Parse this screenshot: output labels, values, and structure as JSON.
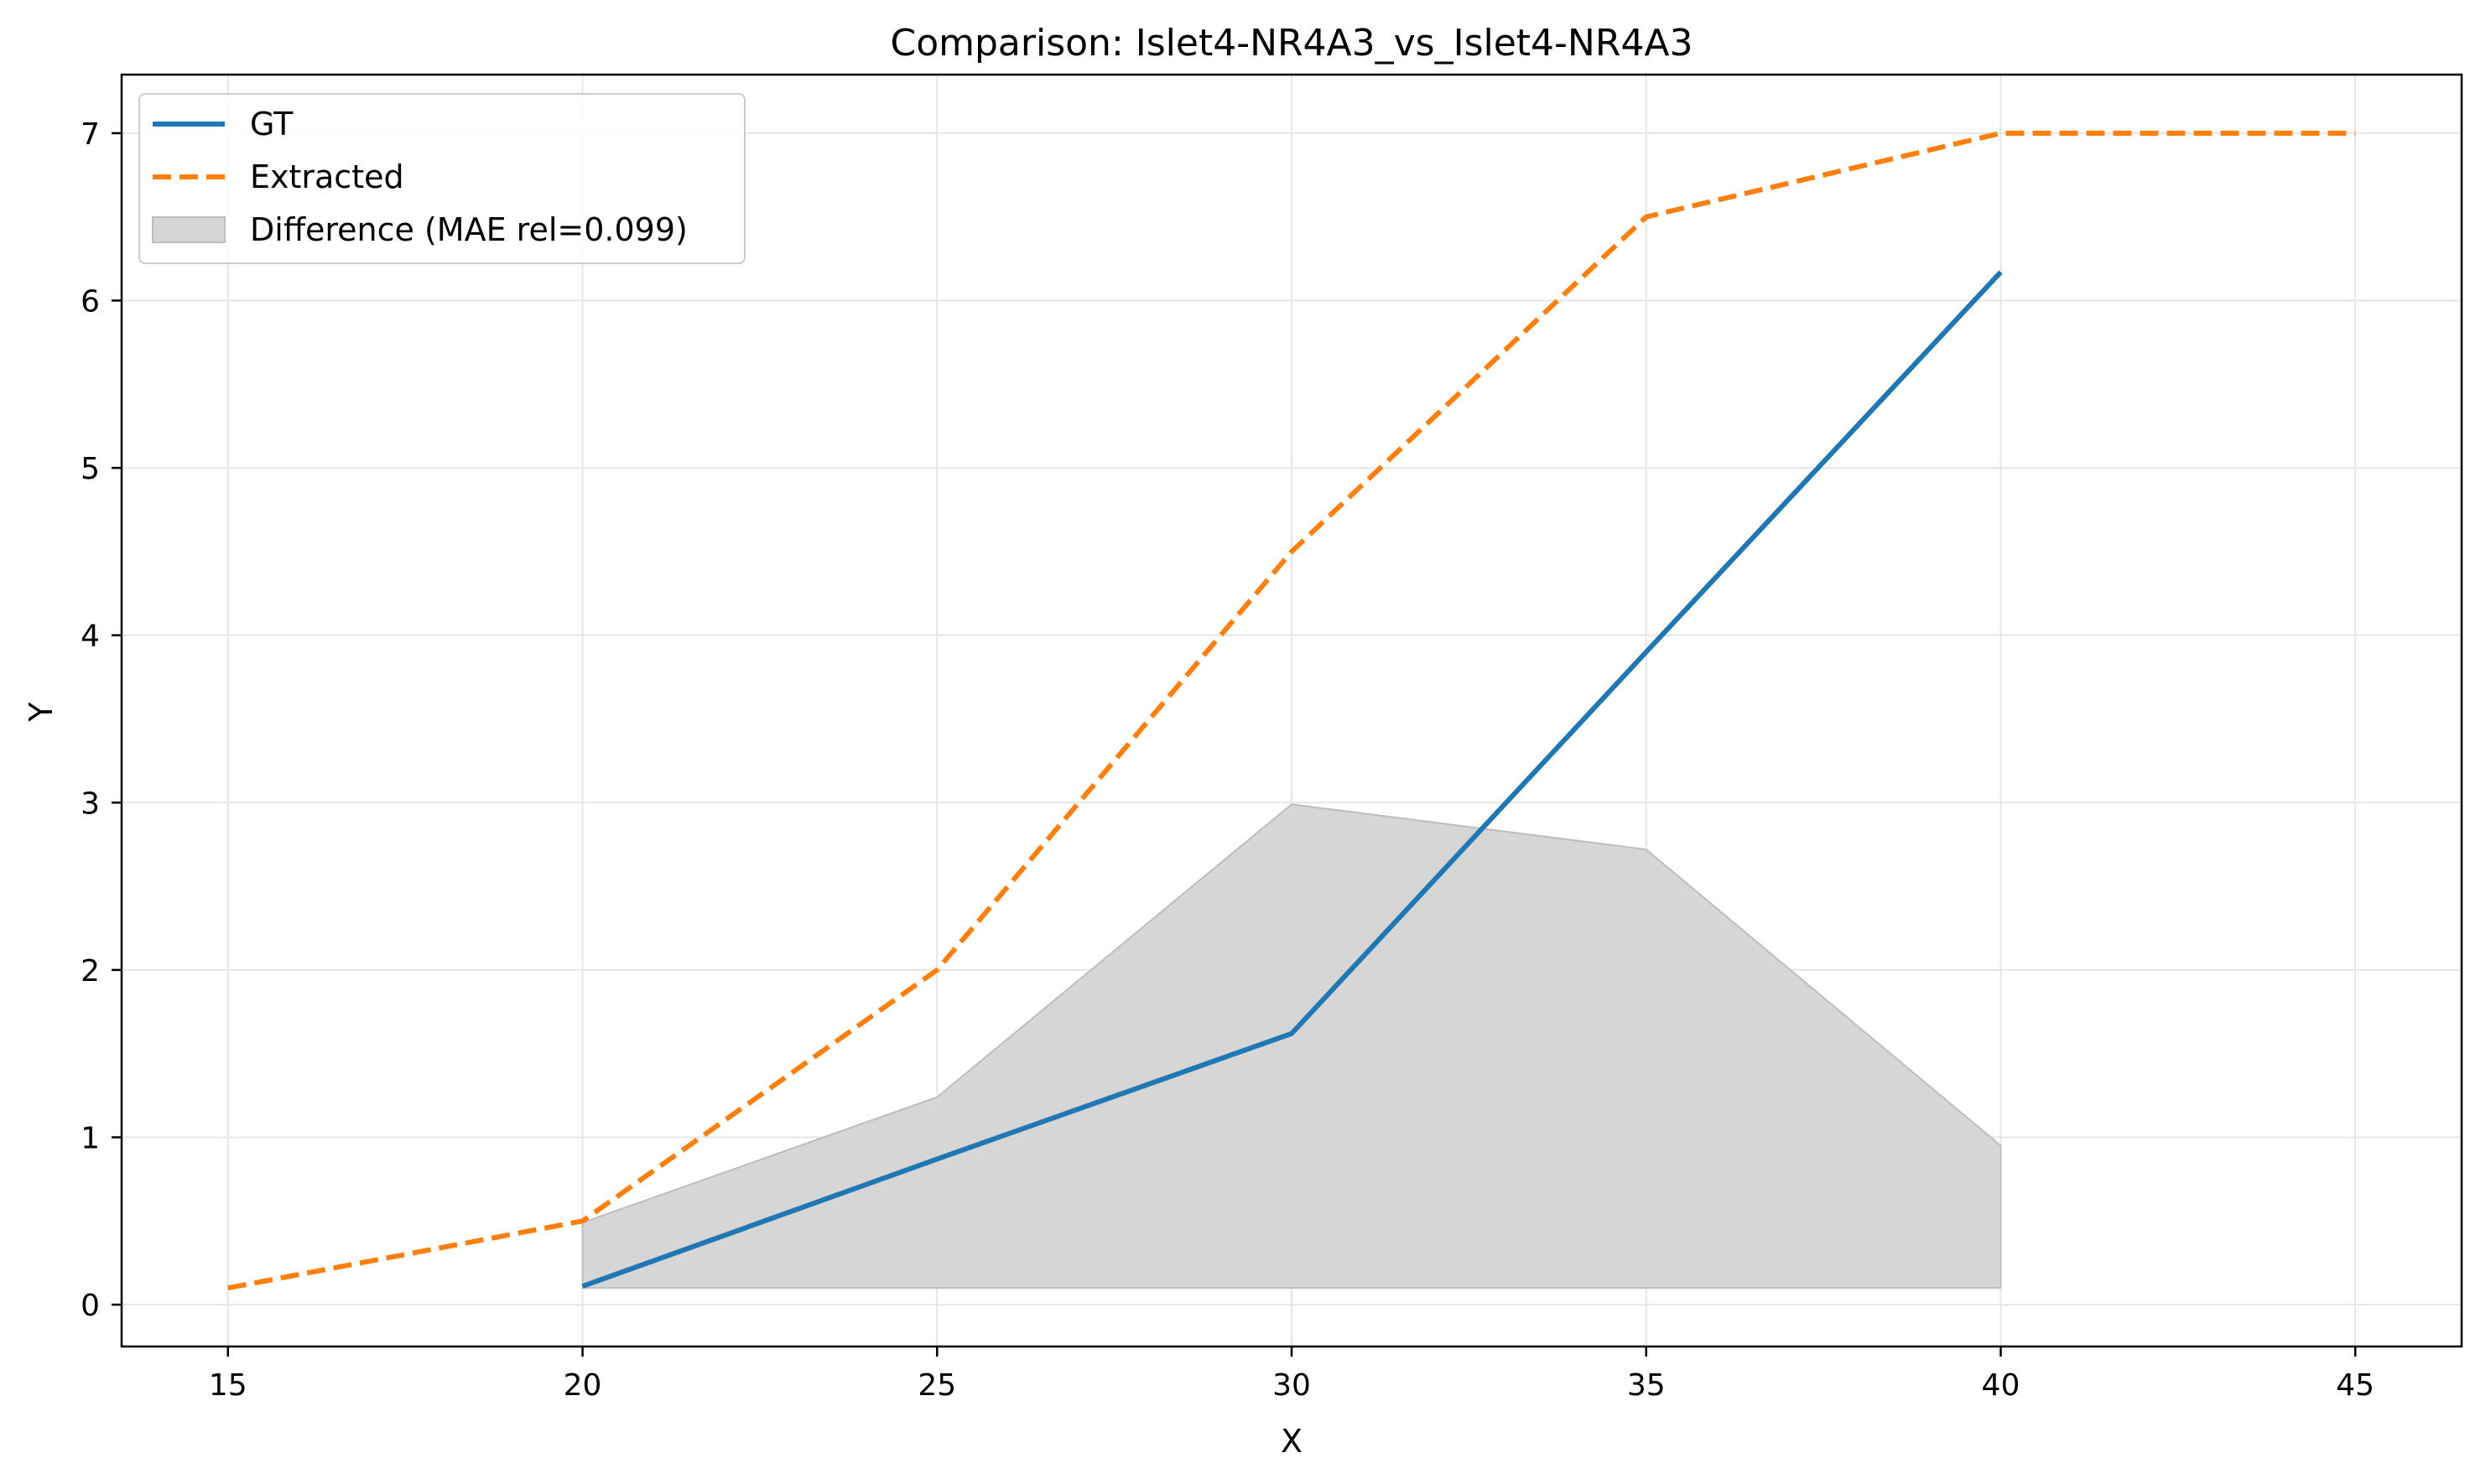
{
  "chart_data": {
    "type": "line",
    "title": "Comparison: Islet4-NR4A3_vs_Islet4-NR4A3",
    "xlabel": "X",
    "ylabel": "Y",
    "xlim": [
      13.5,
      46.5
    ],
    "ylim": [
      -0.25,
      7.35
    ],
    "xticks": [
      15,
      20,
      25,
      30,
      35,
      40,
      45
    ],
    "yticks": [
      0,
      1,
      2,
      3,
      4,
      5,
      6,
      7
    ],
    "grid": true,
    "legend_position": "top-left",
    "series": [
      {
        "name": "GT",
        "style": "solid",
        "color": "#1f77b4",
        "x": [
          20,
          25,
          30,
          35,
          40
        ],
        "y": [
          0.11,
          0.87,
          1.62,
          3.9,
          6.17
        ]
      },
      {
        "name": "Extracted",
        "style": "dashed",
        "color": "#ff7f0e",
        "x": [
          15,
          20,
          25,
          30,
          35,
          40,
          45
        ],
        "y": [
          0.1,
          0.5,
          2.0,
          4.5,
          6.5,
          7.0,
          7.0
        ]
      }
    ],
    "difference_area": {
      "name": "Difference (MAE rel=0.099)",
      "color": "#d6d6d6",
      "x": [
        20,
        25,
        30,
        35,
        40
      ],
      "upper": [
        0.49,
        1.24,
        2.99,
        2.72,
        0.95
      ],
      "lower": [
        0.1,
        0.1,
        0.1,
        0.1,
        0.1
      ]
    }
  }
}
